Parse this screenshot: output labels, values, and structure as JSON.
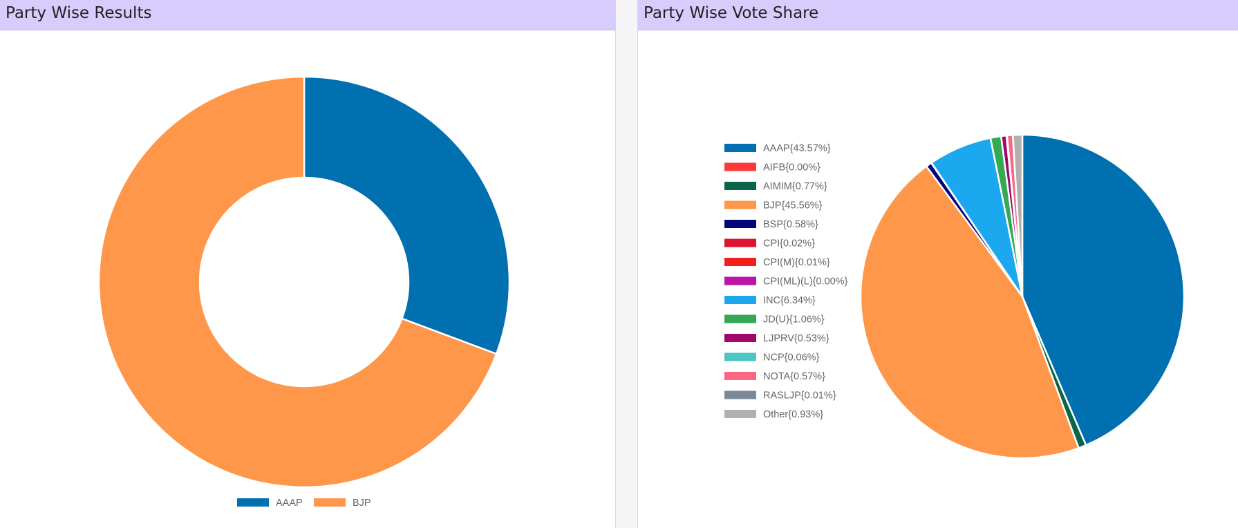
{
  "chart_data": [
    {
      "type": "pie",
      "variant": "doughnut",
      "title": "Party Wise Results",
      "legend_position": "bottom",
      "slices": [
        {
          "label": "AAAP",
          "value": 30.7,
          "color": "#0070b0"
        },
        {
          "label": "BJP",
          "value": 69.3,
          "color": "#fe974a"
        }
      ]
    },
    {
      "type": "pie",
      "title": "Party Wise Vote Share",
      "legend_position": "left",
      "slices": [
        {
          "label": "AAAP{43.57%}",
          "value": 43.57,
          "color": "#0070b0"
        },
        {
          "label": "AIFB{0.00%}",
          "value": 0.0,
          "color": "#fd3838"
        },
        {
          "label": "AIMIM{0.77%}",
          "value": 0.77,
          "color": "#0a6449"
        },
        {
          "label": "BJP{45.56%}",
          "value": 45.56,
          "color": "#fe974a"
        },
        {
          "label": "BSP{0.58%}",
          "value": 0.58,
          "color": "#03047a"
        },
        {
          "label": "CPI{0.02%}",
          "value": 0.02,
          "color": "#dd1532"
        },
        {
          "label": "CPI(M){0.01%}",
          "value": 0.01,
          "color": "#f51c1c"
        },
        {
          "label": "CPI(ML)(L){0.00%}",
          "value": 0.0,
          "color": "#bb14a8"
        },
        {
          "label": "INC{6.34%}",
          "value": 6.34,
          "color": "#1ba8ef"
        },
        {
          "label": "JD(U){1.06%}",
          "value": 1.06,
          "color": "#35a854"
        },
        {
          "label": "LJPRV{0.53%}",
          "value": 0.53,
          "color": "#a1066b"
        },
        {
          "label": "NCP{0.06%}",
          "value": 0.06,
          "color": "#4ec5c1"
        },
        {
          "label": "NOTA{0.57%}",
          "value": 0.57,
          "color": "#fb6685"
        },
        {
          "label": "RASLJP{0.01%}",
          "value": 0.01,
          "color": "#7b8a99"
        },
        {
          "label": "Other{0.93%}",
          "value": 0.93,
          "color": "#b0b0b0"
        }
      ]
    }
  ]
}
